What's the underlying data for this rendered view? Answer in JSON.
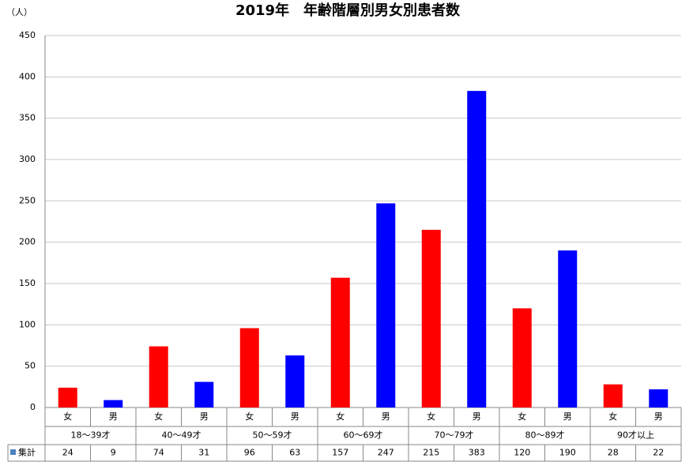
{
  "chart_data": {
    "type": "bar",
    "title": "2019年　年齢階層別男女別患者数",
    "y_unit": "（人）",
    "categories": [
      "女",
      "男",
      "女",
      "男",
      "女",
      "男",
      "女",
      "男",
      "女",
      "男",
      "女",
      "男",
      "女",
      "男"
    ],
    "groups": [
      "18～39才",
      "40～49才",
      "50～59才",
      "60～69才",
      "70～79才",
      "80～89才",
      "90才以上"
    ],
    "series": [
      {
        "name": "集計",
        "color": "#4f81bd",
        "values": [
          24,
          9,
          74,
          31,
          96,
          63,
          157,
          247,
          215,
          383,
          120,
          190,
          28,
          22
        ]
      }
    ],
    "bar_colors": [
      "#ff0000",
      "#0000ff",
      "#ff0000",
      "#0000ff",
      "#ff0000",
      "#0000ff",
      "#ff0000",
      "#0000ff",
      "#ff0000",
      "#0000ff",
      "#ff0000",
      "#0000ff",
      "#ff0000",
      "#0000ff"
    ],
    "ylim": [
      0,
      450
    ],
    "yticks": [
      0,
      50,
      100,
      150,
      200,
      250,
      300,
      350,
      400,
      450
    ],
    "grid": true
  }
}
